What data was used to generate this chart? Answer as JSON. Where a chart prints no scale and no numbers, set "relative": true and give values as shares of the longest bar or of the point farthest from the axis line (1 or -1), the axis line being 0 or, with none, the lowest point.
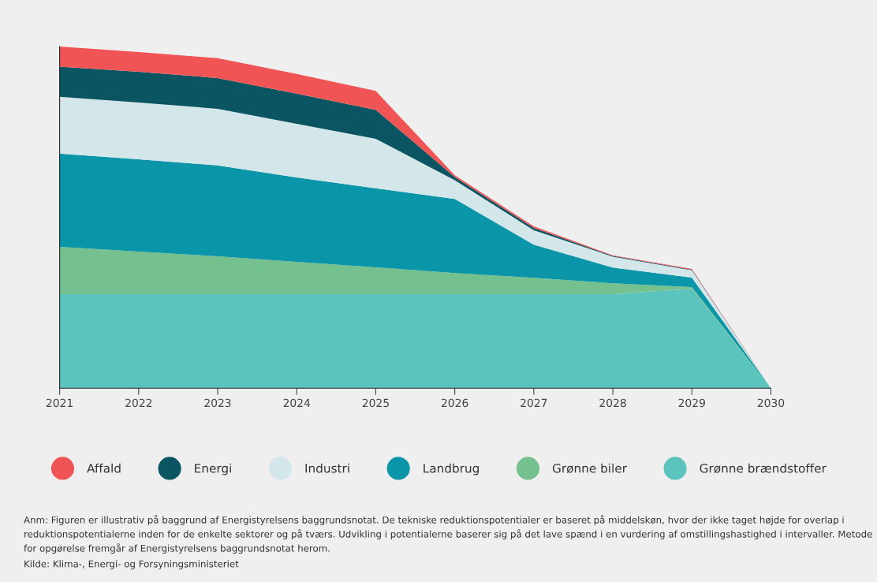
{
  "chart_data": {
    "type": "area",
    "stacked": true,
    "relative": true,
    "x": [
      2021,
      2022,
      2023,
      2024,
      2025,
      2026,
      2027,
      2028,
      2029,
      2030
    ],
    "xlim": [
      2021,
      2030
    ],
    "xticks": [
      2021,
      2022,
      2023,
      2024,
      2025,
      2026,
      2027,
      2028,
      2029,
      2030
    ],
    "tick_labels": "x",
    "grid": false,
    "legend": "bottom",
    "series": [
      {
        "name": "Grønne brændstoffer",
        "color": "#5bc4bd",
        "values": [
          0.275,
          0.275,
          0.275,
          0.275,
          0.275,
          0.275,
          0.275,
          0.275,
          0.291,
          0
        ]
      },
      {
        "name": "Grønne biler",
        "color": "#74c18f",
        "values": [
          0.139,
          0.125,
          0.111,
          0.095,
          0.079,
          0.062,
          0.048,
          0.032,
          0.005,
          0
        ]
      },
      {
        "name": "Landbrug",
        "color": "#0a96a8",
        "values": [
          0.273,
          0.27,
          0.266,
          0.247,
          0.231,
          0.217,
          0.097,
          0.046,
          0.028,
          0
        ]
      },
      {
        "name": "Industri",
        "color": "#d3e6ea",
        "values": [
          0.166,
          0.166,
          0.166,
          0.157,
          0.145,
          0.055,
          0.042,
          0.032,
          0.021,
          0
        ]
      },
      {
        "name": "Energi",
        "color": "#0b5563",
        "values": [
          0.088,
          0.09,
          0.09,
          0.088,
          0.085,
          0.009,
          0.007,
          0.002,
          0.002,
          0
        ]
      },
      {
        "name": "Affald",
        "color": "#f05454",
        "values": [
          0.059,
          0.058,
          0.058,
          0.058,
          0.055,
          0.005,
          0.005,
          0.002,
          0.002,
          0
        ]
      }
    ],
    "annotations": [
      "Anm: Figuren er illustrativ på baggrund af Energistyrelsens baggrundsnotat. De tekniske reduktionspotentialer er baseret på middelskøn, hvor der ikke taget højde for overlap i reduktionspotentialerne inden for de enkelte sektorer og på tværs. Udvikling i potentialerne baserer sig på det lave spænd i en vurdering af omstillingshastighed i intervaller. Metode for opgørelse fremgår af Energistyrelsens baggrundsnotat herom.",
      "Kilde: Klima-, Energi- og Forsyningsministeriet"
    ]
  }
}
